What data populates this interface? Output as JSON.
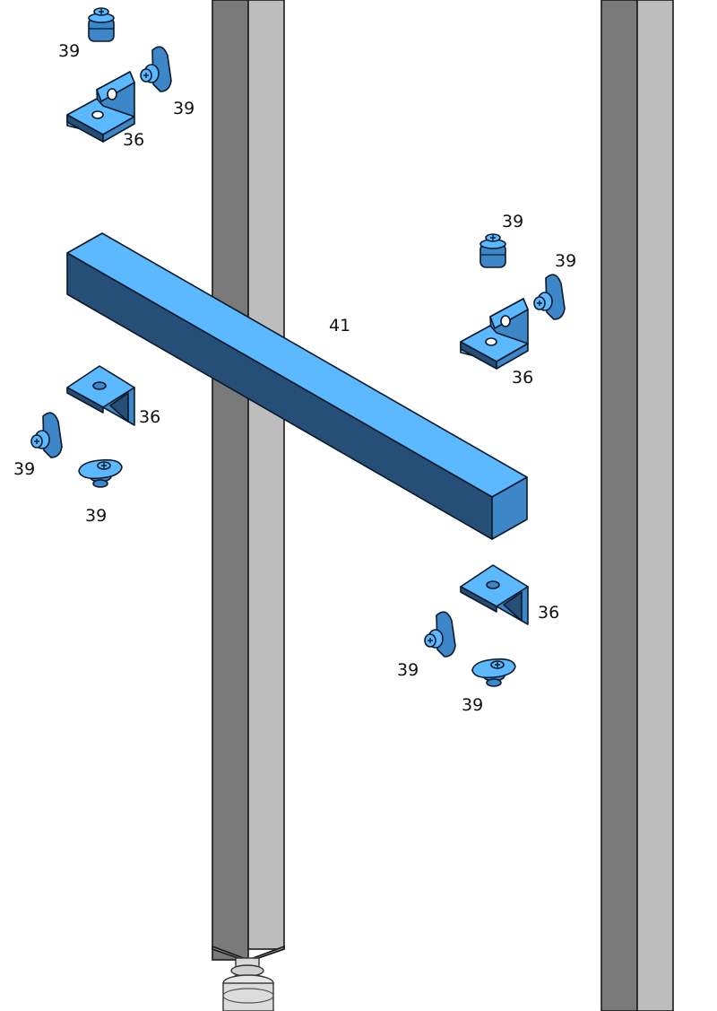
{
  "colors": {
    "part_light": "#5cb8ff",
    "part_mid": "#3d86c8",
    "part_dark": "#264f78",
    "post_dark": "#7a7a7a",
    "post_light": "#bdbdbd",
    "outline": "#0b1a2a",
    "background": "#ffffff"
  },
  "parts": {
    "beam": {
      "callout": "41"
    },
    "post_left": {
      "callout": ""
    },
    "post_right": {
      "callout": ""
    },
    "leveling_foot": {
      "callout": ""
    }
  },
  "callouts": {
    "c1": "39",
    "c2": "39",
    "c3": "36",
    "c4": "39",
    "c5": "39",
    "c6": "41",
    "c7": "36",
    "c8": "36",
    "c9": "39",
    "c10": "39",
    "c11": "36",
    "c12": "39",
    "c13": "39"
  }
}
